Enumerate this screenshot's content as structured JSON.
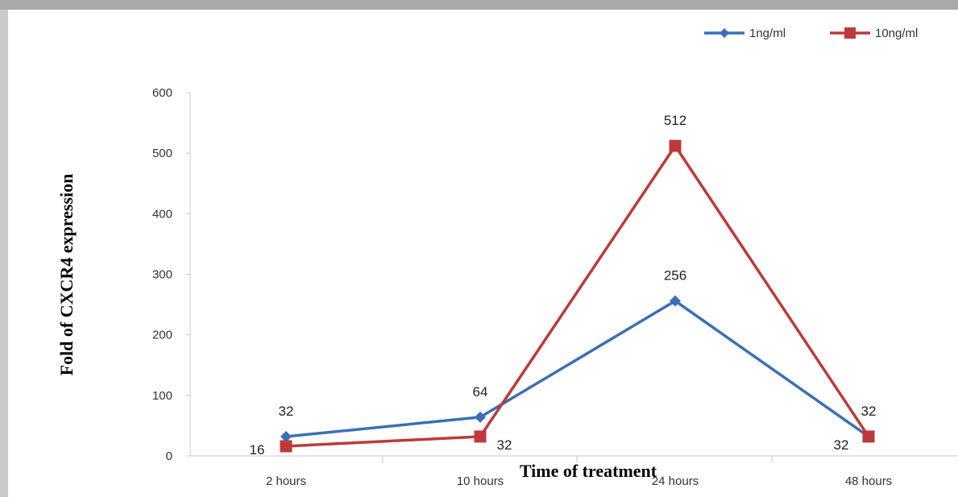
{
  "chart_data": {
    "type": "line",
    "xlabel": "Time of treatment",
    "ylabel": "Fold of CXCR4 expression",
    "categories": [
      "2 hours",
      "10 hours",
      "24 hours",
      "48 hours"
    ],
    "yticks": [
      0,
      100,
      200,
      300,
      400,
      500,
      600
    ],
    "ylim": [
      0,
      600
    ],
    "grid": false,
    "legend_position": "top-right",
    "series": [
      {
        "name": "1ng/ml",
        "color": "#3a6fb5",
        "marker": "diamond",
        "values": [
          32,
          64,
          256,
          32
        ],
        "labels": [
          "32",
          "64",
          "256",
          "32"
        ]
      },
      {
        "name": "10ng/ml",
        "color": "#be3a3a",
        "marker": "square",
        "values": [
          16,
          32,
          512,
          32
        ],
        "labels": [
          "16",
          "32",
          "512",
          "32"
        ]
      }
    ]
  }
}
